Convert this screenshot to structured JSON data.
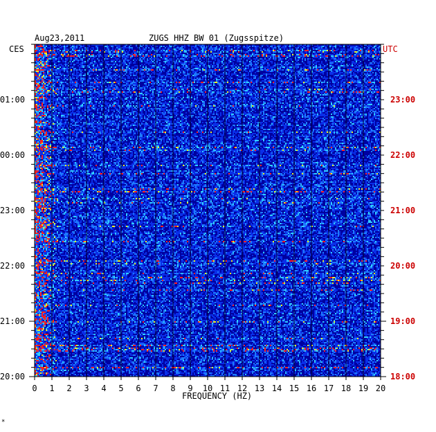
{
  "header": {
    "date": "Aug23,2011",
    "station": "ZUGS HHZ BW 01 (Zugsspitze)",
    "left_tz": "CES",
    "right_tz": "UTC"
  },
  "footer": {
    "mark": "*"
  },
  "chart_data": {
    "type": "heatmap",
    "title": "ZUGS HHZ BW 01 (Zugsspitze)",
    "xlabel": "FREQUENCY (HZ)",
    "xlim": [
      0,
      20
    ],
    "x_ticks": [
      "0",
      "1",
      "2",
      "3",
      "4",
      "5",
      "6",
      "7",
      "8",
      "9",
      "10",
      "11",
      "12",
      "13",
      "14",
      "15",
      "16",
      "17",
      "18",
      "19",
      "20"
    ],
    "left_axis": {
      "label": "CES",
      "ticks": [
        "01:00",
        "00:00",
        "23:00",
        "22:00",
        "21:00",
        "20:00"
      ]
    },
    "right_axis": {
      "label": "UTC",
      "ticks": [
        "23:00",
        "22:00",
        "21:00",
        "20:00",
        "19:00",
        "18:00"
      ]
    },
    "time_direction": "time increases upward",
    "colormap": [
      "#0000a0",
      "#0a2ee8",
      "#1e7cff",
      "#30d0ff",
      "#f0f020",
      "#ff2020"
    ],
    "grid": true
  }
}
